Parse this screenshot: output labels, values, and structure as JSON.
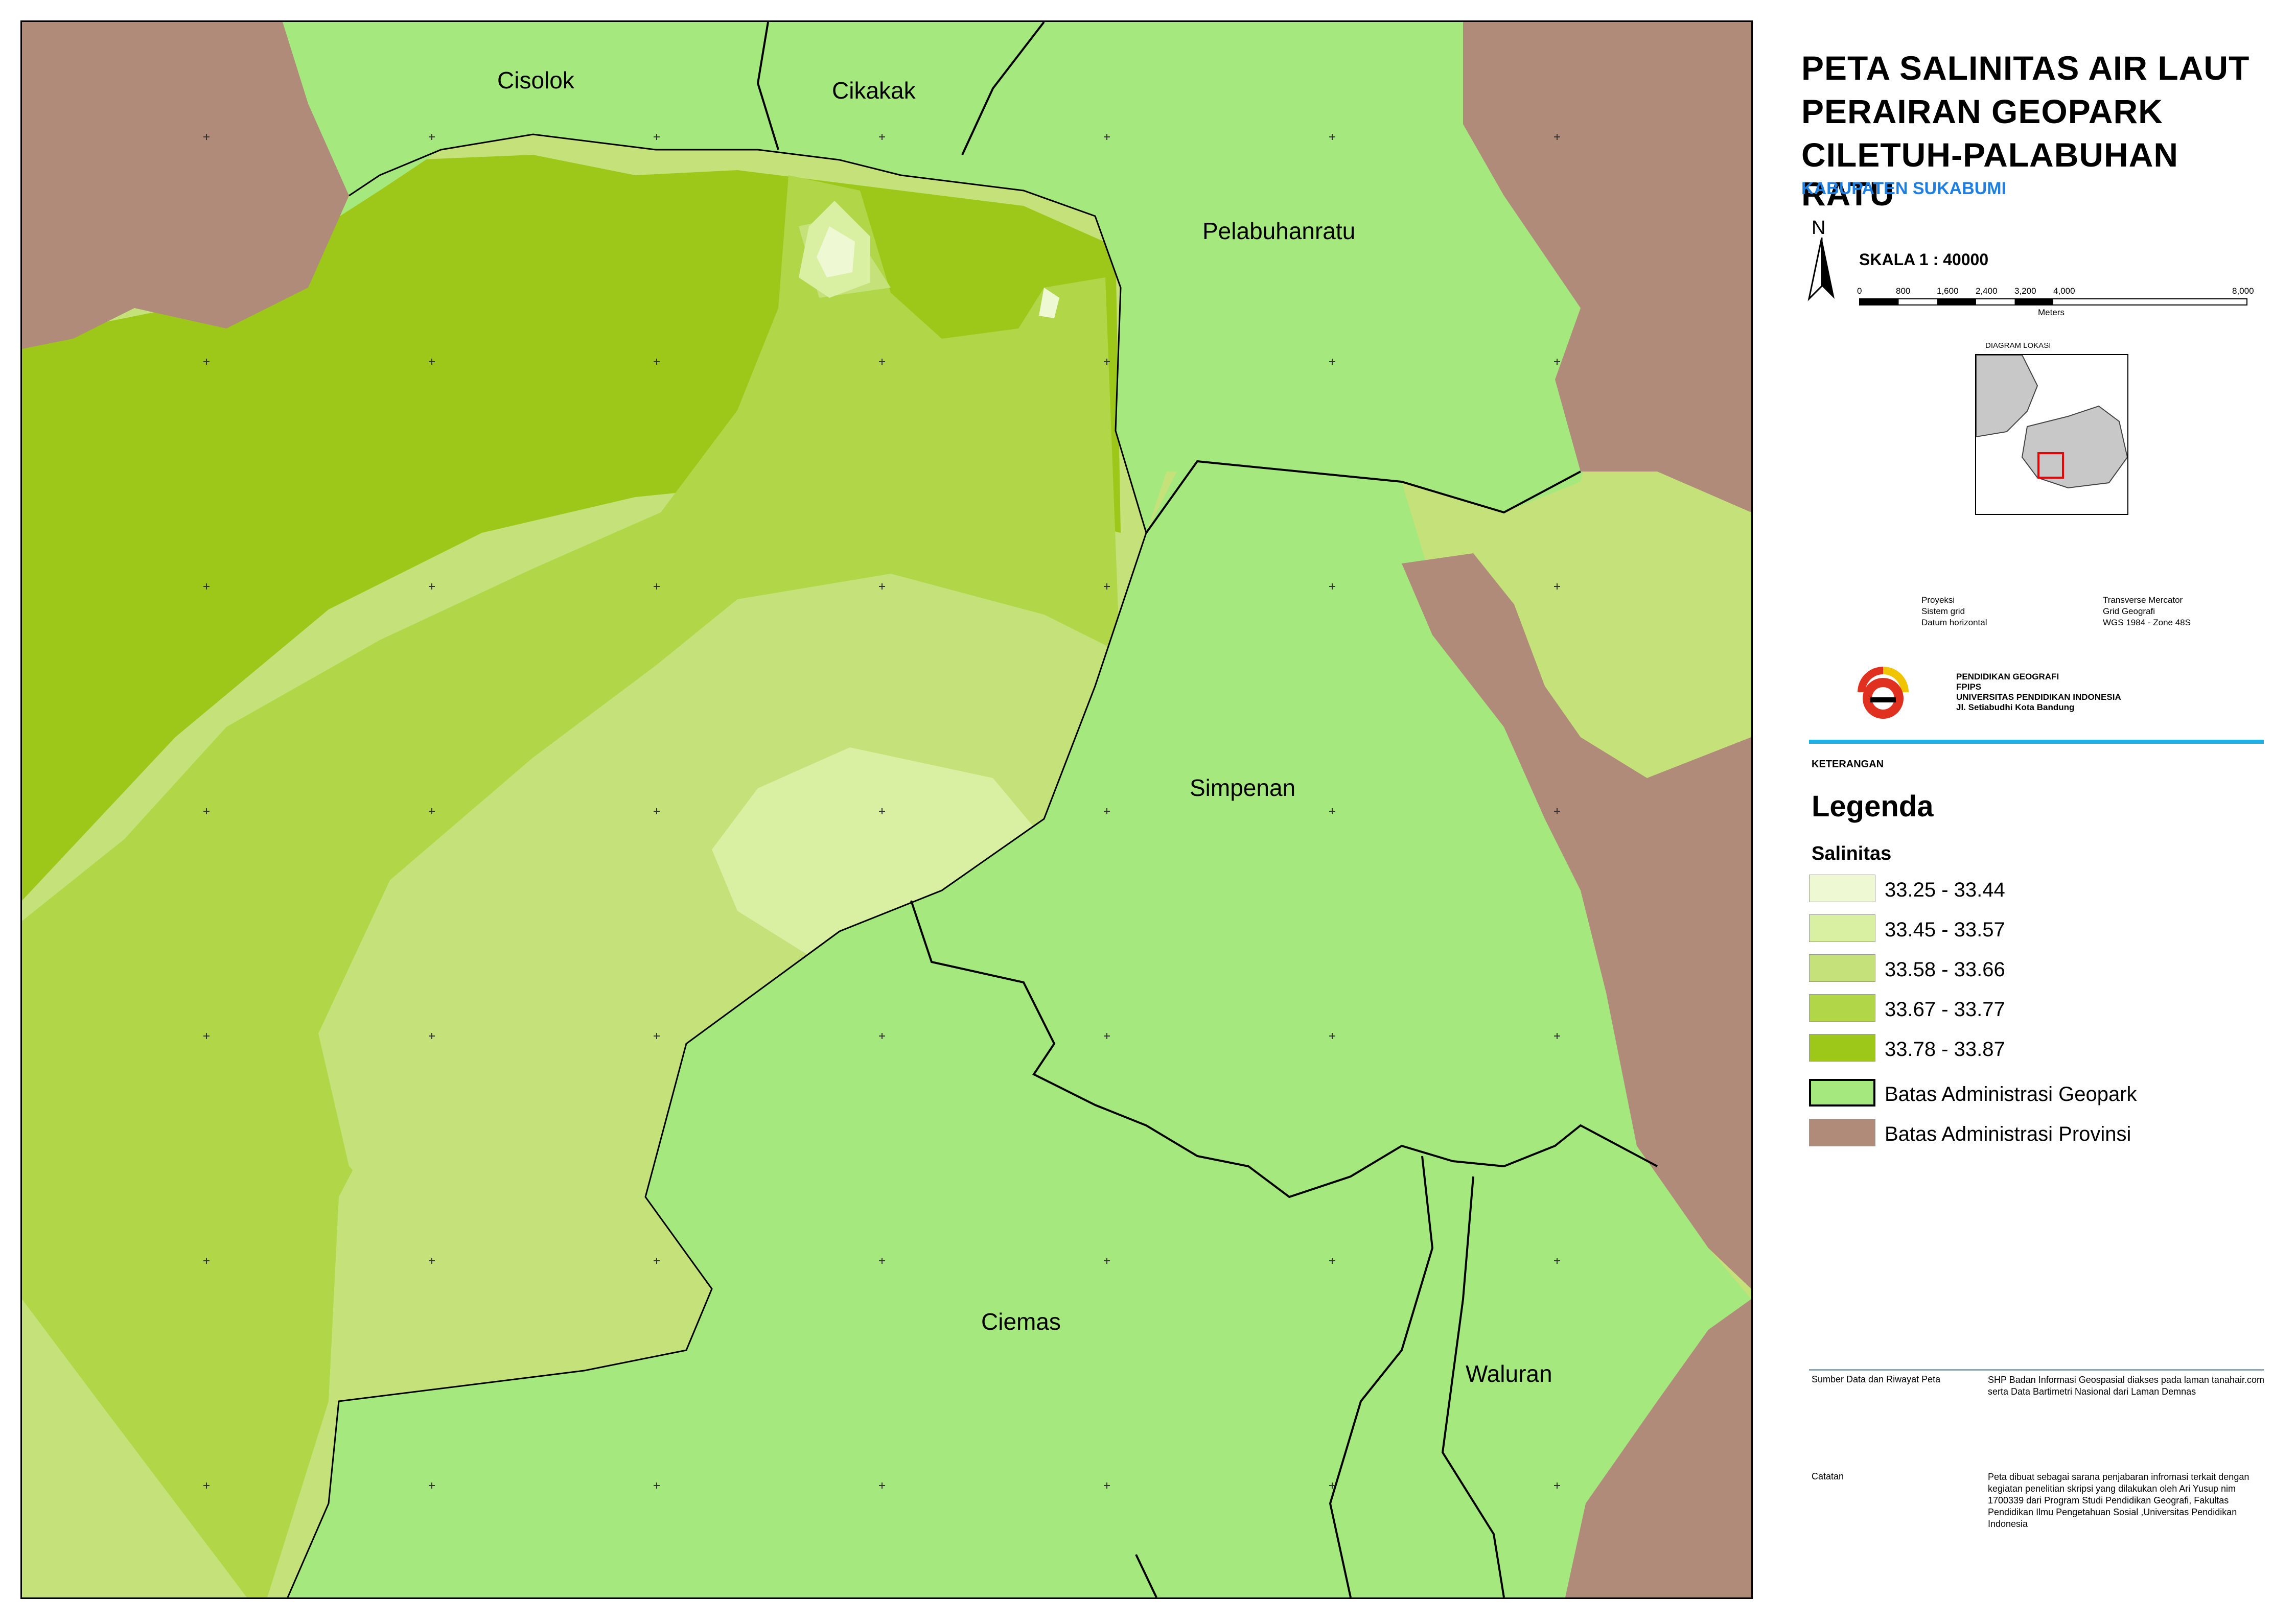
{
  "title": {
    "line1": "PETA SALINITAS AIR LAUT",
    "line2": "PERAIRAN GEOPARK",
    "line3": "CILETUH-PALABUHAN RATU",
    "subtitle": "KABUPATEN SUKABUMI"
  },
  "north_label": "N",
  "scale": {
    "label": "SKALA 1 : 40000",
    "ticks": [
      "0",
      "800",
      "1,600",
      "2,400",
      "3,200",
      "4,000",
      "8,000"
    ],
    "unit": "Meters"
  },
  "locator": {
    "title": "DIAGRAM LOKASI"
  },
  "projection": {
    "rows": [
      {
        "key": "Proyeksi",
        "value": "Transverse Mercator"
      },
      {
        "key": "Sistem grid",
        "value": "Grid Geografi"
      },
      {
        "key": "Datum horizontal",
        "value": "WGS 1984 - Zone 48S"
      }
    ]
  },
  "institution": {
    "line1": "PENDIDIKAN GEOGRAFI",
    "line2": "FPIPS",
    "line3": "UNIVERSITAS PENDIDIKAN INDONESIA",
    "line4": "Jl. Setiabudhi Kota Bandung"
  },
  "keterangan": "KETERANGAN",
  "legend": {
    "title": "Legenda",
    "group": "Salinitas",
    "items": [
      {
        "label": "33.25 - 33.44",
        "color": "#eef9d4"
      },
      {
        "label": "33.45 - 33.57",
        "color": "#d9efa2"
      },
      {
        "label": "33.58 - 33.66",
        "color": "#c5e27a"
      },
      {
        "label": "33.67 - 33.77",
        "color": "#b1d647"
      },
      {
        "label": "33.78 - 33.87",
        "color": "#9dc719"
      },
      {
        "label": "Batas Administrasi Geopark",
        "color": "#a4e87e"
      },
      {
        "label": "Batas Administrasi Provinsi",
        "color": "#b08b7a"
      }
    ]
  },
  "sources": {
    "label": "Sumber Data dan Riwayat Peta",
    "text": "SHP Badan Informasi Geospasial diakses pada laman tanahair.com serta Data Bartimetri Nasional dari Laman Demnas"
  },
  "notes": {
    "label": "Catatan",
    "text": "Peta dibuat sebagai sarana penjabaran infromasi terkait dengan kegiatan penelitian skripsi yang dilakukan oleh Ari Yusup nim 1700339 dari Program Studi Pendidikan Geografi, Fakultas Pendidikan Ilmu Pengetahuan Sosial ,Universitas Pendidikan Indonesia"
  },
  "places": {
    "cisolok": "Cisolok",
    "cikakak": "Cikakak",
    "pelabuhanratu": "Pelabuhanratu",
    "simpenan": "Simpenan",
    "ciemas": "Ciemas",
    "waluran": "Waluran"
  },
  "colors": {
    "land": "#a4e87e",
    "province": "#b08b7a",
    "boundary": "#000000",
    "accent": "#1fb1e6"
  }
}
